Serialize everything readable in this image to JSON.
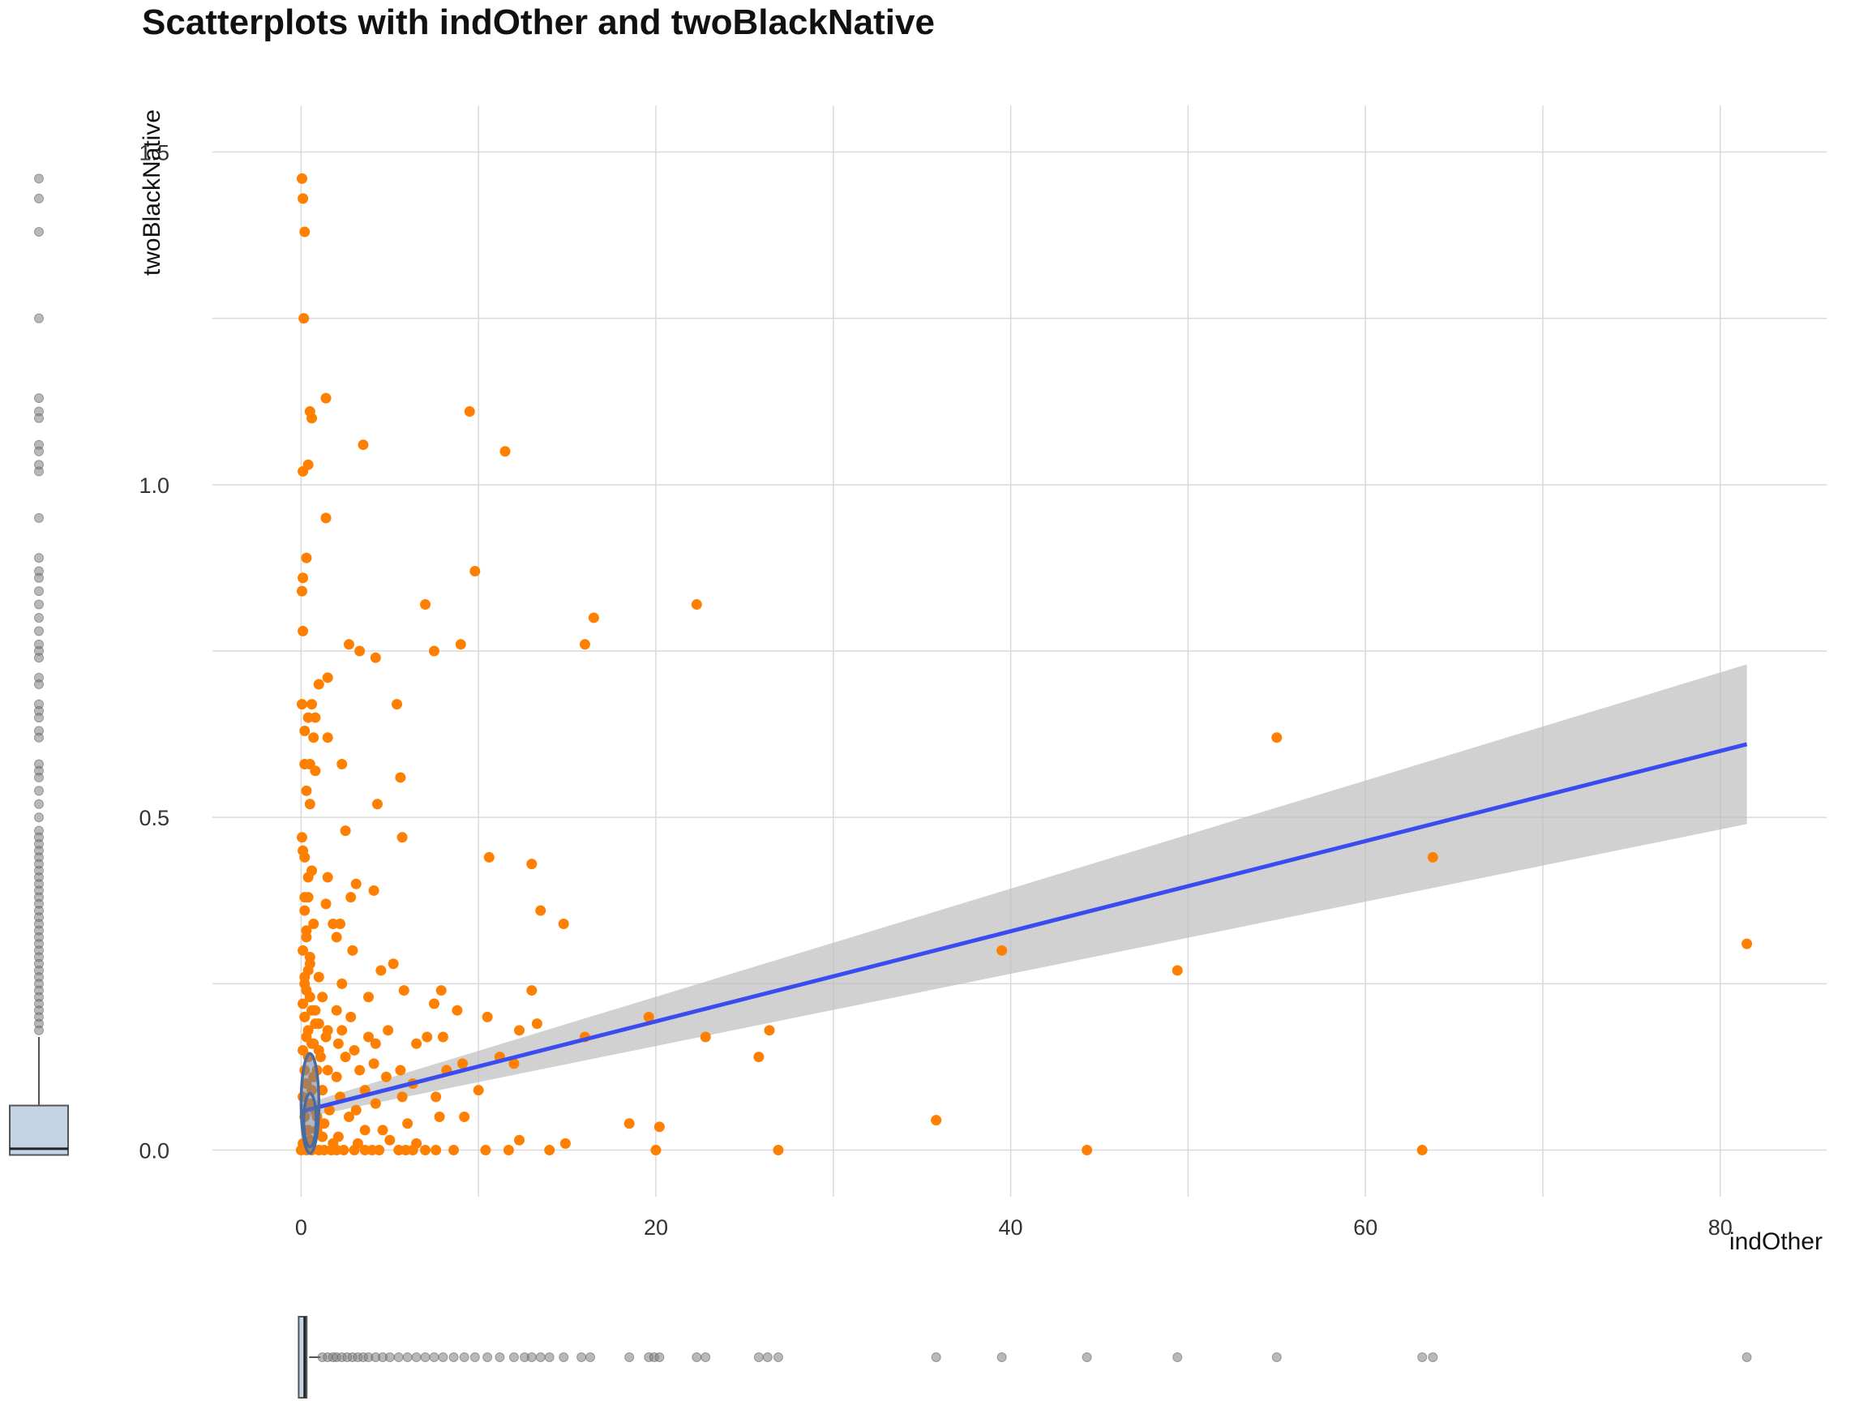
{
  "chart_data": {
    "type": "scatter",
    "title": "Scatterplots with indOther and twoBlackNative",
    "xlabel": "indOther",
    "ylabel": "twoBlackNative",
    "xlim": [
      -5,
      86
    ],
    "ylim": [
      -0.07,
      1.57
    ],
    "x_ticks": [
      0,
      20,
      40,
      60,
      80
    ],
    "y_ticks": [
      0.0,
      0.5,
      1.0,
      1.5
    ],
    "x_tick_labels": [
      "0",
      "20",
      "40",
      "60",
      "80"
    ],
    "y_tick_labels": [
      "0.0",
      "0.5",
      "1.0",
      "1.5"
    ],
    "grid": true,
    "colors": {
      "points": "#ff8000",
      "fit_line": "#3a4cf0",
      "ribbon": "#bdbdbd",
      "marginal_points": "#7f7f7f",
      "box_fill": "#c4d4e4",
      "box_line": "#555555",
      "density": "#4a6aa0"
    },
    "series": [
      {
        "type": "scatter",
        "points": [
          [
            0.05,
            1.46
          ],
          [
            0.1,
            1.43
          ],
          [
            0.2,
            1.38
          ],
          [
            0.15,
            1.25
          ],
          [
            1.4,
            1.13
          ],
          [
            0.5,
            1.11
          ],
          [
            0.6,
            1.1
          ],
          [
            3.5,
            1.06
          ],
          [
            0.4,
            1.03
          ],
          [
            0.1,
            1.02
          ],
          [
            9.5,
            1.11
          ],
          [
            11.5,
            1.05
          ],
          [
            1.4,
            0.95
          ],
          [
            0.3,
            0.89
          ],
          [
            0.1,
            0.86
          ],
          [
            0.05,
            0.84
          ],
          [
            0.1,
            0.78
          ],
          [
            7.0,
            0.82
          ],
          [
            9.8,
            0.87
          ],
          [
            22.3,
            0.82
          ],
          [
            16.5,
            0.8
          ],
          [
            16.0,
            0.76
          ],
          [
            9.0,
            0.76
          ],
          [
            7.5,
            0.75
          ],
          [
            2.7,
            0.76
          ],
          [
            3.3,
            0.75
          ],
          [
            4.2,
            0.74
          ],
          [
            1.0,
            0.7
          ],
          [
            1.5,
            0.71
          ],
          [
            0.05,
            0.67
          ],
          [
            0.6,
            0.67
          ],
          [
            0.8,
            0.65
          ],
          [
            0.4,
            0.65
          ],
          [
            0.2,
            0.63
          ],
          [
            0.7,
            0.62
          ],
          [
            1.5,
            0.62
          ],
          [
            5.4,
            0.67
          ],
          [
            0.2,
            0.58
          ],
          [
            0.5,
            0.58
          ],
          [
            0.8,
            0.57
          ],
          [
            2.3,
            0.58
          ],
          [
            5.6,
            0.56
          ],
          [
            0.3,
            0.54
          ],
          [
            0.5,
            0.52
          ],
          [
            4.3,
            0.52
          ],
          [
            2.5,
            0.48
          ],
          [
            5.7,
            0.47
          ],
          [
            0.05,
            0.47
          ],
          [
            0.1,
            0.45
          ],
          [
            0.2,
            0.44
          ],
          [
            10.6,
            0.44
          ],
          [
            13.0,
            0.43
          ],
          [
            0.6,
            0.42
          ],
          [
            1.5,
            0.41
          ],
          [
            3.1,
            0.4
          ],
          [
            4.1,
            0.39
          ],
          [
            0.4,
            0.38
          ],
          [
            2.8,
            0.38
          ],
          [
            1.4,
            0.37
          ],
          [
            0.2,
            0.36
          ],
          [
            13.5,
            0.36
          ],
          [
            1.8,
            0.34
          ],
          [
            2.2,
            0.34
          ],
          [
            14.8,
            0.34
          ],
          [
            0.7,
            0.34
          ],
          [
            0.3,
            0.32
          ],
          [
            2.0,
            0.32
          ],
          [
            2.9,
            0.3
          ],
          [
            0.5,
            0.29
          ],
          [
            5.2,
            0.28
          ],
          [
            39.5,
            0.3
          ],
          [
            63.8,
            0.44
          ],
          [
            49.4,
            0.27
          ],
          [
            55.0,
            0.62
          ],
          [
            81.5,
            0.31
          ],
          [
            0.4,
            0.27
          ],
          [
            1.0,
            0.26
          ],
          [
            4.5,
            0.27
          ],
          [
            0.2,
            0.25
          ],
          [
            2.3,
            0.25
          ],
          [
            7.9,
            0.24
          ],
          [
            5.8,
            0.24
          ],
          [
            0.5,
            0.23
          ],
          [
            1.2,
            0.23
          ],
          [
            3.8,
            0.23
          ],
          [
            7.5,
            0.22
          ],
          [
            13.0,
            0.24
          ],
          [
            0.6,
            0.21
          ],
          [
            2.0,
            0.21
          ],
          [
            8.8,
            0.21
          ],
          [
            0.2,
            0.2
          ],
          [
            2.8,
            0.2
          ],
          [
            10.5,
            0.2
          ],
          [
            19.6,
            0.2
          ],
          [
            0.8,
            0.19
          ],
          [
            13.3,
            0.19
          ],
          [
            12.3,
            0.18
          ],
          [
            1.5,
            0.18
          ],
          [
            2.3,
            0.18
          ],
          [
            4.9,
            0.18
          ],
          [
            26.4,
            0.18
          ],
          [
            7.1,
            0.17
          ],
          [
            0.3,
            0.17
          ],
          [
            1.4,
            0.17
          ],
          [
            8.0,
            0.17
          ],
          [
            3.8,
            0.17
          ],
          [
            16.0,
            0.17
          ],
          [
            22.8,
            0.17
          ],
          [
            0.6,
            0.16
          ],
          [
            2.1,
            0.16
          ],
          [
            4.2,
            0.16
          ],
          [
            6.5,
            0.16
          ],
          [
            1.0,
            0.15
          ],
          [
            3.0,
            0.15
          ],
          [
            11.2,
            0.14
          ],
          [
            25.8,
            0.14
          ],
          [
            0.4,
            0.14
          ],
          [
            2.5,
            0.14
          ],
          [
            4.1,
            0.13
          ],
          [
            12.0,
            0.13
          ],
          [
            8.2,
            0.12
          ],
          [
            9.1,
            0.13
          ],
          [
            1.5,
            0.12
          ],
          [
            3.3,
            0.12
          ],
          [
            5.6,
            0.12
          ],
          [
            0.7,
            0.11
          ],
          [
            4.8,
            0.11
          ],
          [
            2.0,
            0.11
          ],
          [
            6.3,
            0.1
          ],
          [
            10.0,
            0.09
          ],
          [
            0.3,
            0.1
          ],
          [
            1.2,
            0.09
          ],
          [
            3.6,
            0.09
          ],
          [
            7.6,
            0.08
          ],
          [
            2.2,
            0.08
          ],
          [
            5.7,
            0.08
          ],
          [
            0.5,
            0.07
          ],
          [
            4.2,
            0.07
          ],
          [
            1.6,
            0.06
          ],
          [
            3.1,
            0.06
          ],
          [
            7.8,
            0.05
          ],
          [
            9.2,
            0.05
          ],
          [
            0.9,
            0.05
          ],
          [
            2.7,
            0.05
          ],
          [
            6.0,
            0.04
          ],
          [
            18.5,
            0.04
          ],
          [
            35.8,
            0.045
          ],
          [
            20.2,
            0.035
          ],
          [
            1.3,
            0.04
          ],
          [
            4.6,
            0.03
          ],
          [
            3.6,
            0.03
          ],
          [
            0.4,
            0.03
          ],
          [
            2.1,
            0.02
          ],
          [
            12.3,
            0.015
          ],
          [
            14.9,
            0.01
          ],
          [
            6.5,
            0.01
          ],
          [
            1.8,
            0.01
          ],
          [
            5.0,
            0.015
          ],
          [
            0.5,
            0.015
          ],
          [
            3.2,
            0.01
          ],
          [
            0.0,
            0.0
          ],
          [
            1.0,
            0.0
          ],
          [
            2.0,
            0.0
          ],
          [
            3.0,
            0.0
          ],
          [
            4.0,
            0.0
          ],
          [
            5.5,
            0.0
          ],
          [
            6.3,
            0.0
          ],
          [
            7.0,
            0.0
          ],
          [
            7.6,
            0.0
          ],
          [
            8.6,
            0.0
          ],
          [
            10.4,
            0.0
          ],
          [
            11.7,
            0.0
          ],
          [
            14.0,
            0.0
          ],
          [
            20.0,
            0.0
          ],
          [
            26.9,
            0.0
          ],
          [
            44.3,
            0.0
          ],
          [
            63.2,
            0.0
          ],
          [
            0.3,
            0.0
          ],
          [
            0.6,
            0.0
          ],
          [
            1.3,
            0.0
          ],
          [
            1.7,
            0.0
          ],
          [
            2.4,
            0.0
          ],
          [
            3.6,
            0.0
          ],
          [
            4.4,
            0.0
          ],
          [
            5.9,
            0.0
          ],
          [
            0.1,
            0.01
          ],
          [
            0.2,
            0.05
          ],
          [
            0.1,
            0.08
          ],
          [
            0.3,
            0.1
          ],
          [
            0.2,
            0.12
          ],
          [
            0.1,
            0.15
          ],
          [
            0.4,
            0.18
          ],
          [
            0.2,
            0.2
          ],
          [
            0.1,
            0.22
          ],
          [
            0.3,
            0.24
          ],
          [
            0.2,
            0.26
          ],
          [
            0.5,
            0.28
          ],
          [
            0.1,
            0.3
          ],
          [
            0.3,
            0.33
          ],
          [
            0.2,
            0.38
          ],
          [
            0.4,
            0.41
          ],
          [
            0.6,
            0.09
          ],
          [
            0.8,
            0.06
          ],
          [
            0.9,
            0.12
          ],
          [
            1.1,
            0.14
          ],
          [
            0.7,
            0.16
          ],
          [
            1.0,
            0.19
          ],
          [
            0.8,
            0.21
          ],
          [
            1.2,
            0.02
          ],
          [
            0.9,
            0.03
          ]
        ]
      },
      {
        "type": "smooth",
        "method": "linear",
        "x": [
          0,
          81.5
        ],
        "y": [
          0.058,
          0.61
        ],
        "ribbon_lower": [
          0.048,
          0.49
        ],
        "ribbon_upper": [
          0.068,
          0.73
        ]
      }
    ],
    "density_contours": [
      {
        "cx": 0.5,
        "cy": 0.07,
        "rx": 0.5,
        "ry": 0.075
      },
      {
        "cx": 0.5,
        "cy": 0.045,
        "rx": 0.35,
        "ry": 0.04
      }
    ],
    "marginal_y": {
      "box": {
        "q1": 0.0,
        "median": 0.002,
        "q3": 0.067,
        "whisker_low": 0.0,
        "whisker_high": 0.17
      },
      "outliers": [
        1.46,
        1.43,
        1.38,
        1.25,
        1.13,
        1.11,
        1.1,
        1.06,
        1.05,
        1.03,
        1.02,
        0.95,
        0.89,
        0.87,
        0.86,
        0.84,
        0.82,
        0.8,
        0.78,
        0.76,
        0.75,
        0.74,
        0.71,
        0.7,
        0.67,
        0.66,
        0.65,
        0.63,
        0.62,
        0.58,
        0.57,
        0.56,
        0.54,
        0.52,
        0.5,
        0.48,
        0.47,
        0.46,
        0.45,
        0.44,
        0.43,
        0.42,
        0.41,
        0.4,
        0.39,
        0.38,
        0.37,
        0.36,
        0.35,
        0.34,
        0.33,
        0.32,
        0.31,
        0.3,
        0.29,
        0.28,
        0.27,
        0.26,
        0.25,
        0.24,
        0.23,
        0.22,
        0.21,
        0.2,
        0.19,
        0.18
      ]
    },
    "marginal_x": {
      "box": {
        "q1": 0.0,
        "median": 0.2,
        "q3": 0.45,
        "whisker_low": 0.0,
        "whisker_high": 1.1
      },
      "outliers": [
        1.2,
        1.5,
        1.8,
        2.0,
        2.3,
        2.6,
        2.9,
        3.2,
        3.5,
        3.8,
        4.2,
        4.6,
        5.0,
        5.5,
        6.0,
        6.5,
        7.0,
        7.5,
        8.0,
        8.6,
        9.2,
        9.8,
        10.5,
        11.2,
        12.0,
        12.6,
        13.0,
        13.5,
        14.0,
        14.8,
        15.8,
        16.3,
        18.5,
        19.6,
        19.9,
        20.2,
        22.3,
        22.8,
        25.8,
        26.3,
        26.9,
        35.8,
        39.5,
        44.3,
        49.4,
        55.0,
        63.2,
        63.8,
        81.5
      ]
    }
  }
}
